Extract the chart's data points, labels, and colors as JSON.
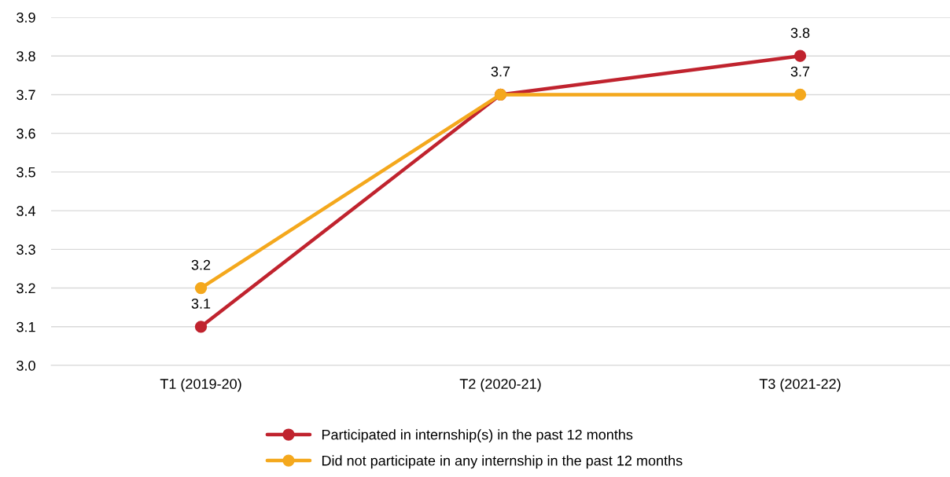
{
  "chart_data": {
    "type": "line",
    "categories": [
      "T1 (2019-20)",
      "T2 (2020-21)",
      "T3 (2021-22)"
    ],
    "series": [
      {
        "name": "Participated in internship(s) in the past 12 months",
        "color": "#c0232e",
        "values": [
          3.1,
          3.7,
          3.8
        ],
        "value_labels": [
          "3.1",
          "3.7",
          "3.8"
        ]
      },
      {
        "name": "Did not participate in any internship in the past 12 months",
        "color": "#f4a81d",
        "values": [
          3.2,
          3.7,
          3.7
        ],
        "value_labels": [
          "3.2",
          null,
          "3.7"
        ]
      }
    ],
    "ylim": [
      3.0,
      3.9
    ],
    "yticks": [
      "3.0",
      "3.1",
      "3.2",
      "3.3",
      "3.4",
      "3.5",
      "3.6",
      "3.7",
      "3.8",
      "3.9"
    ],
    "grid": "y",
    "legend": "bottom",
    "marker": "circle",
    "line_style": "solid"
  }
}
